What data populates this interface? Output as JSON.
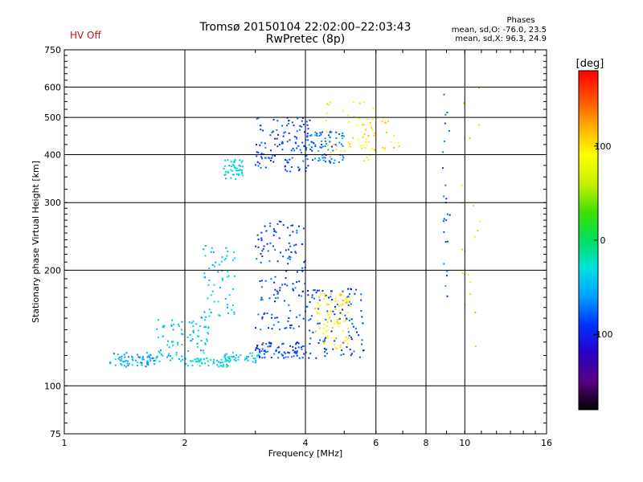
{
  "status": {
    "hv": "HV Off"
  },
  "header": {
    "title_line1": "Tromsø 20150104 22:02:00–22:03:43",
    "title_line2": "RwPretec (8p)"
  },
  "phases": {
    "title": "Phases",
    "o_line": "mean, sd,O: -76.0, 23.5",
    "x_line": "mean, sd,X:  96.3, 24.9"
  },
  "colorbar": {
    "label": "[deg]",
    "ticks": [
      {
        "value": 100,
        "label": "100"
      },
      {
        "value": 0,
        "label": "0"
      },
      {
        "value": -100,
        "label": "-100"
      }
    ],
    "range": [
      -180,
      180
    ],
    "colors": [
      "#000000",
      "#5a0080",
      "#2a00c8",
      "#0030ff",
      "#00a0ff",
      "#00e0e0",
      "#00e060",
      "#40e000",
      "#c8f000",
      "#ffff00",
      "#ffb000",
      "#ff5000",
      "#ff0000"
    ]
  },
  "chart_data": {
    "type": "scatter",
    "title": "Tromsø 20150104 22:02:00–22:03:43",
    "subtitle": "RwPretec (8p)",
    "xlabel": "Frequency [MHz]",
    "ylabel": "Stationary phase Virtual Height [km]",
    "xscale": "log",
    "yscale": "log",
    "xlim": [
      1,
      16
    ],
    "ylim": [
      75,
      750
    ],
    "x_ticks": [
      1,
      2,
      4,
      6,
      8,
      10,
      16
    ],
    "x_tick_labels": [
      "1",
      "2",
      "4",
      "6",
      "8",
      "10",
      "16"
    ],
    "y_ticks": [
      75,
      100,
      200,
      300,
      400,
      500,
      600,
      750
    ],
    "y_tick_labels": [
      "75",
      "100",
      "200",
      "300",
      "400",
      "500",
      "600",
      "750"
    ],
    "grid": true,
    "color_variable": "phase [deg]",
    "clusters": [
      {
        "f": [
          1.3,
          1.7
        ],
        "h": [
          112,
          122
        ],
        "phase": -55,
        "n": 70
      },
      {
        "f": [
          1.7,
          2.3
        ],
        "h": [
          115,
          150
        ],
        "phase": -40,
        "n": 90
      },
      {
        "f": [
          2.0,
          2.6
        ],
        "h": [
          112,
          118
        ],
        "phase": -30,
        "n": 50
      },
      {
        "f": [
          2.2,
          2.7
        ],
        "h": [
          150,
          240
        ],
        "phase": -40,
        "n": 60
      },
      {
        "f": [
          2.5,
          3.1
        ],
        "h": [
          115,
          122
        ],
        "phase": -35,
        "n": 40
      },
      {
        "f": [
          2.5,
          2.8
        ],
        "h": [
          345,
          390
        ],
        "phase": -35,
        "n": 50
      },
      {
        "f": [
          3.0,
          4.0
        ],
        "h": [
          118,
          130
        ],
        "phase": -85,
        "n": 80
      },
      {
        "f": [
          3.0,
          4.0
        ],
        "h": [
          140,
          270
        ],
        "phase": -85,
        "n": 140
      },
      {
        "f": [
          3.0,
          4.2
        ],
        "h": [
          360,
          500
        ],
        "phase": -85,
        "n": 120
      },
      {
        "f": [
          4.0,
          5.6
        ],
        "h": [
          118,
          180
        ],
        "phase": -90,
        "n": 110
      },
      {
        "f": [
          4.2,
          5.2
        ],
        "h": [
          125,
          175
        ],
        "phase": 95,
        "n": 90
      },
      {
        "f": [
          4.0,
          5.0
        ],
        "h": [
          380,
          460
        ],
        "phase": -70,
        "n": 80
      },
      {
        "f": [
          4.5,
          6.0
        ],
        "h": [
          380,
          560
        ],
        "phase": 90,
        "n": 50
      },
      {
        "f": [
          5.5,
          7.0
        ],
        "h": [
          400,
          500
        ],
        "phase": 100,
        "n": 25
      },
      {
        "f": [
          8.8,
          9.2
        ],
        "h": [
          170,
          600
        ],
        "phase": -80,
        "n": 25
      },
      {
        "f": [
          9.8,
          11.0
        ],
        "h": [
          110,
          600
        ],
        "phase": 60,
        "n": 20
      }
    ]
  }
}
